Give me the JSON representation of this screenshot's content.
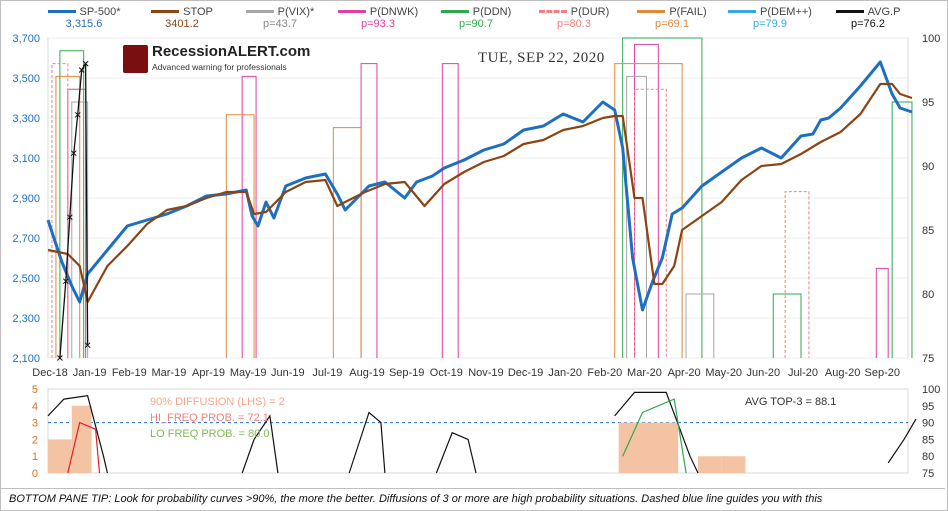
{
  "legend": [
    {
      "name": "SP-500*",
      "value": "3,315.6",
      "color": "#1f6fc1",
      "dash": "",
      "marker": ""
    },
    {
      "name": "STOP",
      "value": "3401.2",
      "color": "#8b4513",
      "dash": "",
      "marker": ""
    },
    {
      "name": "P(VIX)*",
      "value": "p=43.7",
      "color": "#a6a6a6",
      "dash": "",
      "marker": ""
    },
    {
      "name": "P(DNWK)",
      "value": "p=93.3",
      "color": "#e040a0",
      "dash": "",
      "marker": ""
    },
    {
      "name": "P(DDN)",
      "value": "p=90.7",
      "color": "#2fa84f",
      "dash": "",
      "marker": ""
    },
    {
      "name": "P(DUR)",
      "value": "p=80.3",
      "color": "#f08080",
      "dash": "3,2",
      "marker": ""
    },
    {
      "name": "P(FAIL)",
      "value": "p=69.1",
      "color": "#e08a3c",
      "dash": "",
      "marker": ""
    },
    {
      "name": "P(DEM++)",
      "value": "p=79.9",
      "color": "#3aa8e0",
      "dash": "",
      "marker": ""
    },
    {
      "name": "AVG.P",
      "value": "p=76.2",
      "color": "#111111",
      "dash": "",
      "marker": "x"
    }
  ],
  "logo": {
    "name": "RecessionALERT.com",
    "tagline": "Advanced warning for professionals"
  },
  "date_label": "TUE, SEP 22, 2020",
  "chart_data": [
    {
      "type": "line",
      "title": "",
      "x_categories": [
        "Dec-18",
        "Jan-19",
        "Feb-19",
        "Mar-19",
        "Apr-19",
        "May-19",
        "Jun-19",
        "Jul-19",
        "Aug-19",
        "Sep-19",
        "Oct-19",
        "Nov-19",
        "Dec-19",
        "Jan-20",
        "Feb-20",
        "Mar-20",
        "Apr-20",
        "May-20",
        "Jun-20",
        "Jul-20",
        "Aug-20",
        "Sep-20"
      ],
      "y_left_ticks": [
        "2,100",
        "2,300",
        "2,500",
        "2,700",
        "2,900",
        "3,100",
        "3,300",
        "3,500",
        "3,700"
      ],
      "y_left_range": [
        2100,
        3700
      ],
      "y_right_ticks": [
        "75",
        "80",
        "85",
        "90",
        "95",
        "100"
      ],
      "y_right_range": [
        75,
        100
      ],
      "series": [
        {
          "name": "SP-500*",
          "axis": "left",
          "x": [
            0,
            0.15,
            0.35,
            0.6,
            0.8,
            1,
            1.5,
            2,
            2.5,
            3,
            3.5,
            4,
            4.5,
            5,
            5.15,
            5.3,
            5.5,
            5.7,
            6,
            6.5,
            7,
            7.3,
            7.5,
            7.8,
            8.1,
            8.5,
            9,
            9.3,
            9.7,
            10,
            10.5,
            11,
            11.5,
            12,
            12.5,
            13,
            13.5,
            14,
            14.3,
            14.5,
            14.75,
            15,
            15.25,
            15.5,
            15.75,
            16,
            16.5,
            17,
            17.5,
            18,
            18.5,
            19,
            19.3,
            19.5,
            19.7,
            20,
            20.5,
            21,
            21.3,
            21.5,
            21.8
          ],
          "y": [
            2790,
            2700,
            2580,
            2460,
            2380,
            2520,
            2640,
            2760,
            2790,
            2820,
            2860,
            2910,
            2920,
            2940,
            2810,
            2760,
            2880,
            2800,
            2960,
            3000,
            3020,
            2920,
            2840,
            2900,
            2960,
            2980,
            2900,
            2980,
            3010,
            3050,
            3090,
            3140,
            3170,
            3240,
            3260,
            3320,
            3280,
            3380,
            3340,
            3150,
            2600,
            2340,
            2480,
            2600,
            2820,
            2850,
            2960,
            3030,
            3100,
            3150,
            3100,
            3210,
            3220,
            3290,
            3300,
            3350,
            3460,
            3580,
            3420,
            3350,
            3330
          ]
        },
        {
          "name": "STOP",
          "axis": "left",
          "x": [
            0,
            0.5,
            0.8,
            1,
            1.5,
            2,
            2.5,
            3,
            3.5,
            4,
            4.5,
            5,
            5.2,
            5.5,
            6,
            6.5,
            7,
            7.3,
            7.5,
            8,
            8.5,
            9,
            9.5,
            10,
            10.5,
            11,
            11.5,
            12,
            12.5,
            13,
            13.5,
            14,
            14.3,
            14.5,
            14.8,
            15,
            15.3,
            15.5,
            15.8,
            16,
            16.5,
            17,
            17.5,
            18,
            18.5,
            19,
            19.5,
            20,
            20.5,
            21,
            21.3,
            21.5,
            21.8
          ],
          "y": [
            2640,
            2620,
            2560,
            2380,
            2560,
            2660,
            2770,
            2840,
            2860,
            2900,
            2930,
            2930,
            2820,
            2830,
            2930,
            2980,
            2990,
            2860,
            2880,
            2930,
            2970,
            2980,
            2860,
            2970,
            3030,
            3080,
            3110,
            3170,
            3190,
            3240,
            3260,
            3300,
            3310,
            3310,
            2900,
            2900,
            2470,
            2470,
            2560,
            2740,
            2810,
            2880,
            2990,
            3060,
            3070,
            3120,
            3180,
            3230,
            3320,
            3470,
            3470,
            3420,
            3400
          ]
        },
        {
          "name": "AVG.P",
          "axis": "right",
          "x": [
            0.3,
            0.45,
            0.55,
            0.65,
            0.75,
            0.85,
            0.95,
            1.0
          ],
          "y": [
            75,
            81,
            86,
            91,
            94,
            97.5,
            98,
            76
          ]
        }
      ]
    },
    {
      "type": "area",
      "title": "",
      "x_categories": [
        "Dec-18",
        "Jan-19",
        "Feb-19",
        "Mar-19",
        "Apr-19",
        "May-19",
        "Jun-19",
        "Jul-19",
        "Aug-19",
        "Sep-19",
        "Oct-19",
        "Nov-19",
        "Dec-19",
        "Jan-20",
        "Feb-20",
        "Mar-20",
        "Apr-20",
        "May-20",
        "Jun-20",
        "Jul-20",
        "Aug-20",
        "Sep-20"
      ],
      "y_left_ticks": [
        "0",
        "1",
        "2",
        "3",
        "4",
        "5"
      ],
      "y_left_range": [
        0,
        5
      ],
      "y_right_ticks": [
        "75",
        "80",
        "85",
        "90",
        "95",
        "100"
      ],
      "y_right_range": [
        75,
        100
      ],
      "reference_line": {
        "value": 3,
        "style": "dashed"
      },
      "annotations": [
        "90% DIFFUSION (LHS) = 2",
        "HI_FREQ PROB. = 72.1",
        "LO FREQ PROB. = 80.0",
        "AVG TOP-3 = 88.1"
      ]
    }
  ],
  "tip": "BOTTOM PANE TIP: Look for probability curves >90%, the more the better. Diffusions of 3 or more are high probability situations. Dashed blue line guides you with this"
}
